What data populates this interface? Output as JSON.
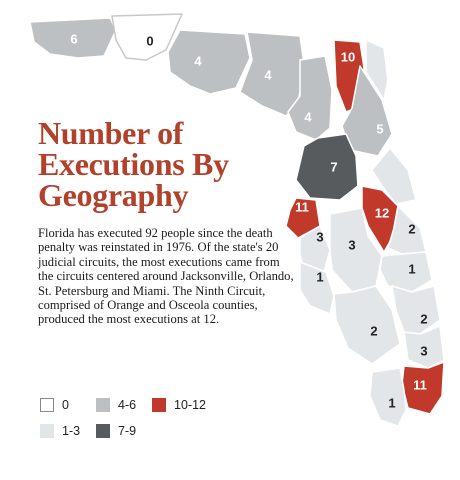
{
  "title": "Number of Executions By Geography",
  "body": "Florida has executed 92 people since the death penalty was reinstated in 1976. Of the state's 20 judicial circuits, the most executions came from the circuits centered around Jacksonville, Orlando, St. Petersburg and Miami. The Ninth Circuit, comprised of Orange and Osceola counties, produced the most executions at 12.",
  "colors": {
    "none": "#ffffff",
    "low": "#e3e6e8",
    "mid": "#bcc0c3",
    "high": "#c0392b",
    "dark": "#575b5e",
    "title": "#b2412b"
  },
  "legend": [
    {
      "label": "0",
      "color": "none"
    },
    {
      "label": "4-6",
      "color": "mid"
    },
    {
      "label": "10-12",
      "color": "high"
    },
    {
      "label": "1-3",
      "color": "low"
    },
    {
      "label": "7-9",
      "color": "dark"
    }
  ],
  "map_labels": {
    "r6": "6",
    "r0": "0",
    "r4a": "4",
    "r4b": "4",
    "r4c": "4",
    "r10": "10",
    "r5": "5",
    "r7": "7",
    "r11a": "11",
    "r12": "12",
    "r3a": "3",
    "r3b": "3",
    "r2a": "2",
    "r1a": "1",
    "r1b": "1",
    "r2b": "2",
    "r2c": "2",
    "r3c": "3",
    "r11b": "11",
    "r1c": "1"
  }
}
